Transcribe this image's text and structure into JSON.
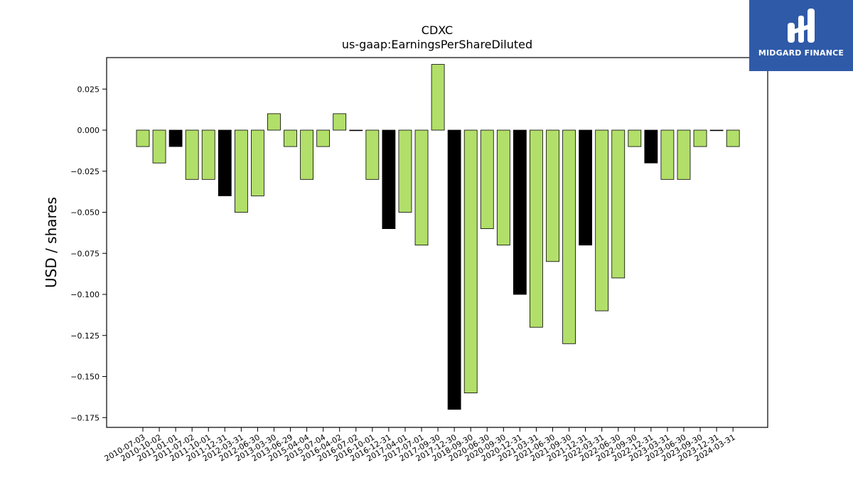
{
  "brand": {
    "name": "MIDGARD FINANCE",
    "bg_color": "#2f5aa8",
    "icon": "midgard-logo-icon"
  },
  "chart_data": {
    "type": "bar",
    "title": "CDXC",
    "subtitle": "us-gaap:EarningsPerShareDiluted",
    "xlabel": "",
    "ylabel": "USD / shares",
    "ylim": [
      -0.18,
      0.043
    ],
    "yticks": [
      0.025,
      0.0,
      -0.025,
      -0.05,
      -0.075,
      -0.1,
      -0.125,
      -0.15,
      -0.175
    ],
    "ytick_labels": [
      "0.025",
      "0.000",
      "−0.025",
      "−0.050",
      "−0.075",
      "−0.100",
      "−0.125",
      "−0.150",
      "−0.175"
    ],
    "grid": false,
    "colors": {
      "default": "#b2df69",
      "highlight": "#000000",
      "edge": "#000000"
    },
    "categories": [
      "2010-07-03",
      "2010-10-02",
      "2011-01-01",
      "2011-07-02",
      "2011-10-01",
      "2011-12-31",
      "2012-03-31",
      "2012-06-30",
      "2013-03-30",
      "2013-06-29",
      "2015-04-04",
      "2015-07-04",
      "2016-04-02",
      "2016-07-02",
      "2016-10-01",
      "2016-12-31",
      "2017-04-01",
      "2017-07-01",
      "2017-09-30",
      "2017-12-30",
      "2018-09-30",
      "2020-06-30",
      "2020-09-30",
      "2020-12-31",
      "2021-03-31",
      "2021-06-30",
      "2021-09-30",
      "2021-12-31",
      "2022-03-31",
      "2022-06-30",
      "2022-09-30",
      "2022-12-31",
      "2023-03-31",
      "2023-06-30",
      "2023-09-30",
      "2023-12-31",
      "2024-03-31"
    ],
    "values": [
      -0.01,
      -0.02,
      -0.01,
      -0.03,
      -0.03,
      -0.04,
      -0.05,
      -0.04,
      0.01,
      -0.01,
      -0.03,
      -0.01,
      0.01,
      0.0,
      -0.03,
      -0.06,
      -0.05,
      -0.07,
      0.04,
      -0.17,
      -0.16,
      -0.06,
      -0.07,
      -0.1,
      -0.12,
      -0.08,
      -0.13,
      -0.07,
      -0.11,
      -0.09,
      -0.01,
      -0.02,
      -0.03,
      -0.03,
      -0.01,
      0.0,
      -0.01
    ],
    "highlighted": [
      false,
      false,
      true,
      false,
      false,
      true,
      false,
      false,
      false,
      false,
      false,
      false,
      false,
      false,
      false,
      true,
      false,
      false,
      false,
      true,
      false,
      false,
      false,
      true,
      false,
      false,
      false,
      true,
      false,
      false,
      false,
      true,
      false,
      false,
      false,
      false,
      false
    ]
  }
}
